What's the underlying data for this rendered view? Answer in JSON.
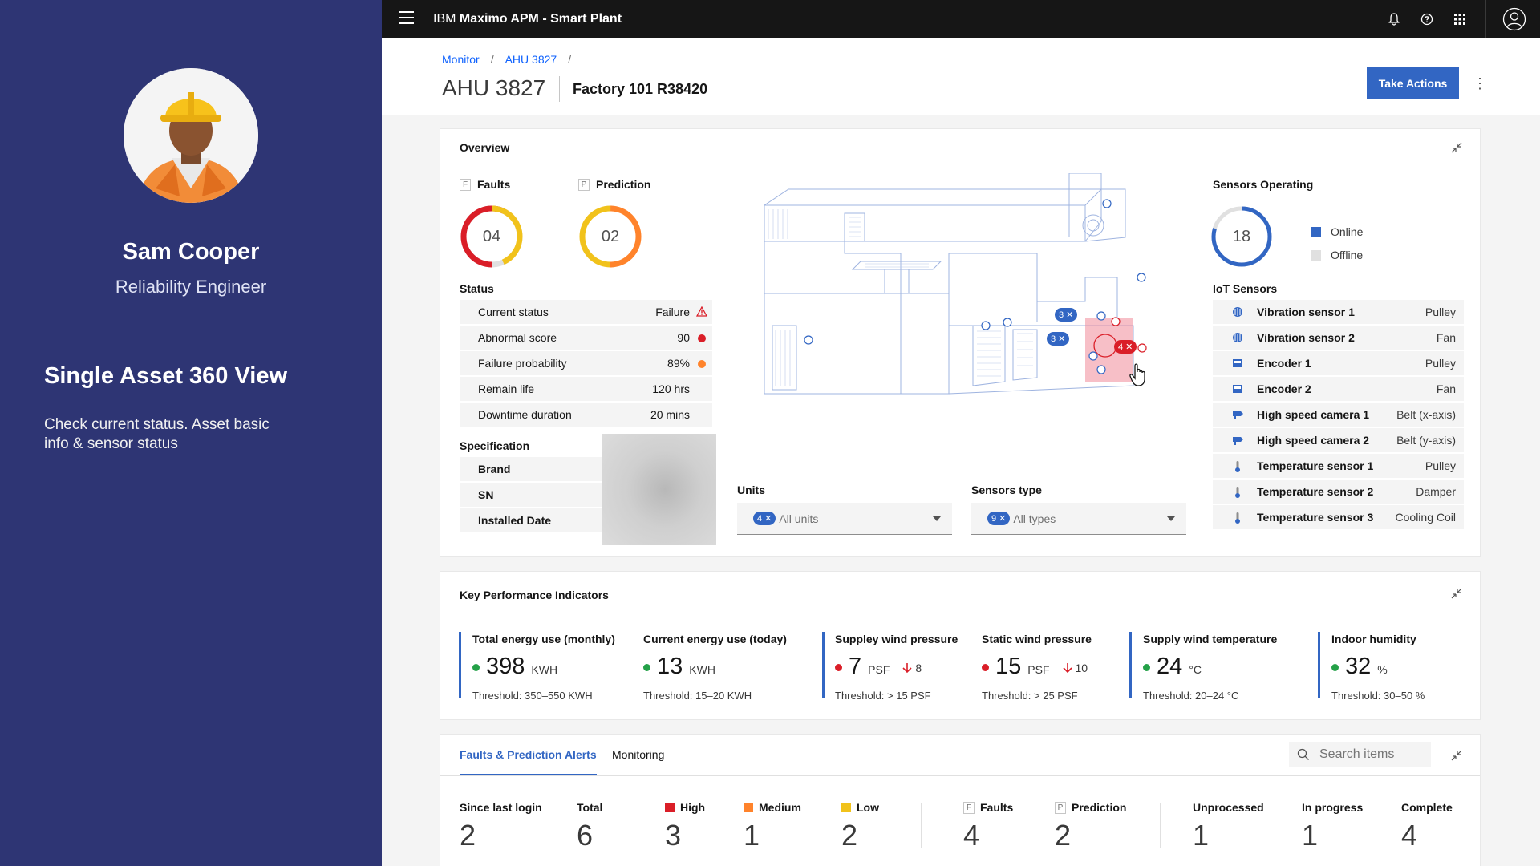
{
  "persona": {
    "name": "Sam Cooper",
    "role": "Reliability Engineer",
    "view_title": "Single Asset 360 View",
    "description": "Check current status. Asset basic info & sensor status"
  },
  "topbar": {
    "brand": "IBM",
    "product": "Maximo APM - Smart Plant",
    "icons": [
      "menu-icon",
      "notification-icon",
      "help-icon",
      "app-switcher-icon",
      "user-icon"
    ]
  },
  "breadcrumb": [
    "Monitor",
    "AHU 3827",
    ""
  ],
  "asset": {
    "id": "AHU 3827",
    "location": "Factory 101 R38420",
    "action_label": "Take Actions"
  },
  "overview": {
    "title": "Overview",
    "faults": {
      "tag": "F",
      "label": "Faults",
      "value": "04"
    },
    "prediction": {
      "tag": "P",
      "label": "Prediction",
      "value": "02"
    },
    "status_title": "Status",
    "status": [
      {
        "key": "Current status",
        "value": "Failure",
        "indicator": "warning"
      },
      {
        "key": "Abnormal score",
        "value": "90",
        "indicator": "#da1e28"
      },
      {
        "key": "Failure probability",
        "value": "89%",
        "indicator": "#ff832b"
      },
      {
        "key": "Remain life",
        "value": "120 hrs",
        "indicator": ""
      },
      {
        "key": "Downtime duration",
        "value": "20 mins",
        "indicator": ""
      }
    ],
    "spec_title": "Specification",
    "spec": [
      "Brand",
      "SN",
      "Installed Date"
    ],
    "model_badges": [
      "3",
      "3",
      "4"
    ],
    "units": {
      "label": "Units",
      "chip": "4",
      "value": "All units"
    },
    "sensors_type": {
      "label": "Sensors type",
      "chip": "9",
      "value": "All types"
    },
    "sensors_operating": {
      "title": "Sensors Operating",
      "value": "18",
      "online_label": "Online",
      "offline_label": "Offline",
      "online_color": "#3266c3",
      "offline_color": "#e0e0e0"
    },
    "iot_title": "IoT Sensors",
    "iot_sensors": [
      {
        "name": "Vibration sensor 1",
        "location": "Pulley",
        "icon": "vibration-icon"
      },
      {
        "name": "Vibration sensor 2",
        "location": "Fan",
        "icon": "vibration-icon"
      },
      {
        "name": "Encoder 1",
        "location": "Pulley",
        "icon": "encoder-icon"
      },
      {
        "name": "Encoder 2",
        "location": "Fan",
        "icon": "encoder-icon"
      },
      {
        "name": "High speed camera 1",
        "location": "Belt (x-axis)",
        "icon": "camera-icon"
      },
      {
        "name": "High speed camera 2",
        "location": "Belt (y-axis)",
        "icon": "camera-icon"
      },
      {
        "name": "Temperature sensor 1",
        "location": "Pulley",
        "icon": "thermometer-icon"
      },
      {
        "name": "Temperature sensor 2",
        "location": "Damper",
        "icon": "thermometer-icon"
      },
      {
        "name": "Temperature sensor 3",
        "location": "Cooling Coil",
        "icon": "thermometer-icon"
      }
    ]
  },
  "kpi": {
    "title": "Key Performance Indicators",
    "items": [
      {
        "name": "Total energy use (monthly)",
        "value": "398",
        "unit": "KWH",
        "delta": "",
        "threshold": "Threshold: 350–550 KWH",
        "status": "#24a148"
      },
      {
        "name": "Current energy use (today)",
        "value": "13",
        "unit": "KWH",
        "delta": "",
        "threshold": "Threshold: 15–20 KWH",
        "status": "#24a148"
      },
      {
        "name": "Suppley wind pressure",
        "value": "7",
        "unit": "PSF",
        "delta": "8",
        "threshold": "Threshold: > 15 PSF",
        "status": "#da1e28"
      },
      {
        "name": "Static wind pressure",
        "value": "15",
        "unit": "PSF",
        "delta": "10",
        "threshold": "Threshold: > 25 PSF",
        "status": "#da1e28"
      },
      {
        "name": "Supply wind temperature",
        "value": "24",
        "unit": "°C",
        "delta": "",
        "threshold": "Threshold: 20–24 °C",
        "status": "#24a148"
      },
      {
        "name": "Indoor humidity",
        "value": "32",
        "unit": "%",
        "delta": "",
        "threshold": "Threshold: 30–50 %",
        "status": "#24a148"
      }
    ]
  },
  "alerts": {
    "tabs": [
      "Faults & Prediction Alerts",
      "Monitoring"
    ],
    "search_placeholder": "Search items",
    "stats": [
      {
        "label": "Since last login",
        "value": "2"
      },
      {
        "label": "Total",
        "value": "6"
      },
      {
        "label": "High",
        "value": "3",
        "color": "#da1e28"
      },
      {
        "label": "Medium",
        "value": "1",
        "color": "#ff832b"
      },
      {
        "label": "Low",
        "value": "2",
        "color": "#f1c21b"
      },
      {
        "label": "Faults",
        "value": "4",
        "tag": "F"
      },
      {
        "label": "Prediction",
        "value": "2",
        "tag": "P"
      },
      {
        "label": "Unprocessed",
        "value": "1"
      },
      {
        "label": "In progress",
        "value": "1"
      },
      {
        "label": "Complete",
        "value": "4"
      }
    ]
  }
}
